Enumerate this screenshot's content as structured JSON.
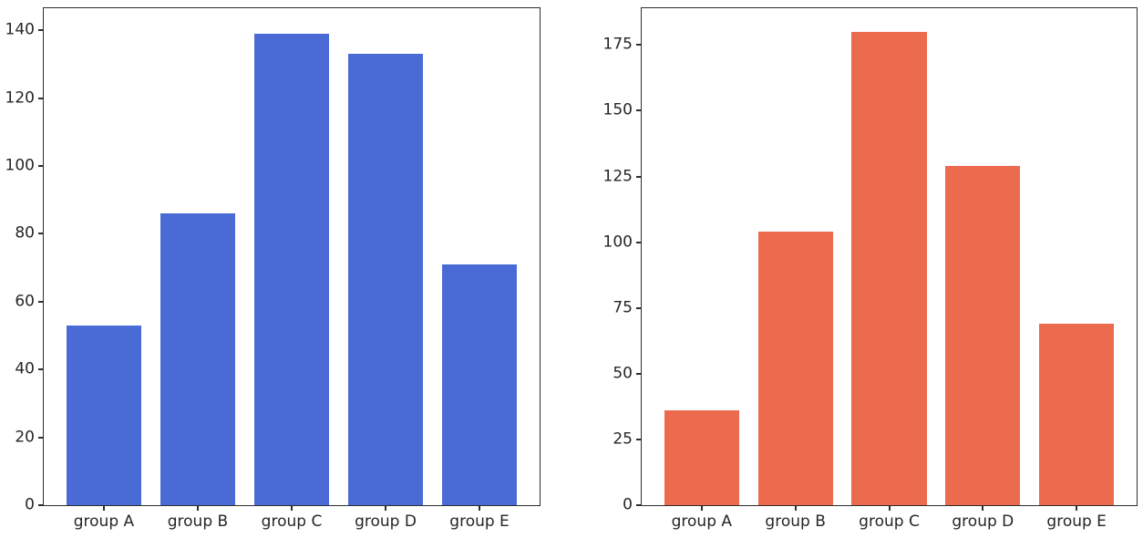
{
  "figure": {
    "background": "#ffffff",
    "spine_color": "#2e2e2e",
    "tick_label_color": "#262626"
  },
  "chart_data": [
    {
      "id": "left",
      "type": "bar",
      "title": "",
      "xlabel": "",
      "ylabel": "",
      "grid": false,
      "categories": [
        "group A",
        "group B",
        "group C",
        "group D",
        "group E"
      ],
      "values": [
        53,
        86,
        139,
        133,
        71
      ],
      "bar_color": "#4a6bd5",
      "bar_width_fraction": 0.8,
      "yticks": [
        0,
        20,
        40,
        60,
        80,
        100,
        120,
        140
      ],
      "ylim": [
        0,
        146.5
      ]
    },
    {
      "id": "right",
      "type": "bar",
      "title": "",
      "xlabel": "",
      "ylabel": "",
      "grid": false,
      "categories": [
        "group A",
        "group B",
        "group C",
        "group D",
        "group E"
      ],
      "values": [
        36,
        104,
        180,
        129,
        69
      ],
      "bar_color": "#ec6b4f",
      "bar_width_fraction": 0.8,
      "yticks": [
        0,
        25,
        50,
        75,
        100,
        125,
        150,
        175
      ],
      "ylim": [
        0,
        189
      ]
    }
  ]
}
